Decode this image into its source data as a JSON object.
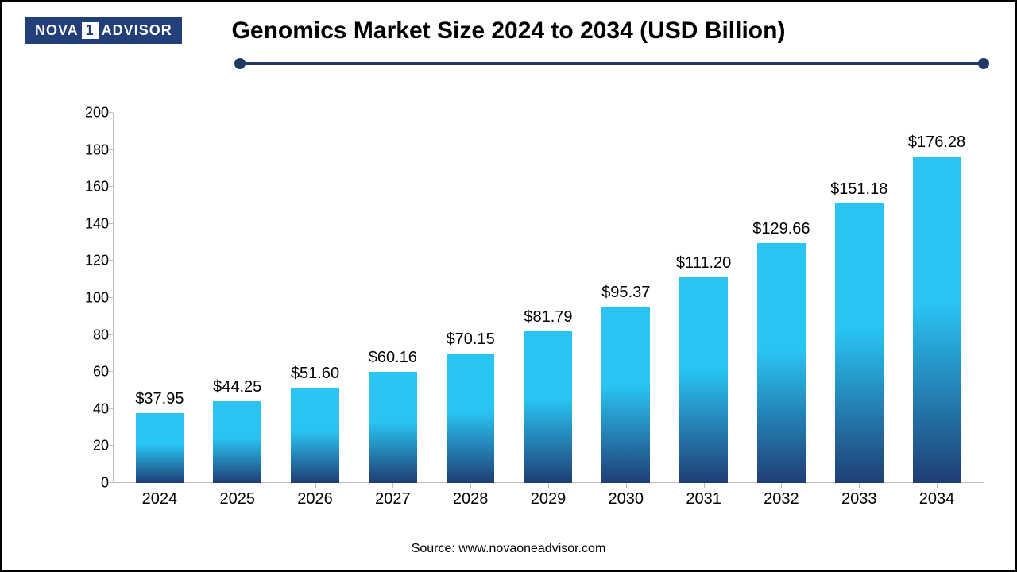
{
  "logo": {
    "part1": "NOVA",
    "boxed": "1",
    "part2": "ADVISOR",
    "bg_color": "#233f78",
    "text_color": "#ffffff"
  },
  "title": {
    "text": "Genomics Market Size 2024 to 2034 (USD Billion)",
    "fontsize": 30,
    "color": "#000000"
  },
  "divider": {
    "color": "#1f3864",
    "thickness": 4
  },
  "chart": {
    "type": "bar",
    "categories": [
      "2024",
      "2025",
      "2026",
      "2027",
      "2028",
      "2029",
      "2030",
      "2031",
      "2032",
      "2033",
      "2034"
    ],
    "values": [
      37.95,
      44.25,
      51.6,
      60.16,
      70.15,
      81.79,
      95.37,
      111.2,
      129.66,
      151.18,
      176.28
    ],
    "value_labels": [
      "$37.95",
      "$44.25",
      "$51.60",
      "$60.16",
      "$70.15",
      "$81.79",
      "$95.37",
      "$111.20",
      "$129.66",
      "$151.18",
      "$176.28"
    ],
    "ylim": [
      0,
      200
    ],
    "ytick_step": 20,
    "yticks": [
      0,
      20,
      40,
      60,
      80,
      100,
      120,
      140,
      160,
      180,
      200
    ],
    "bar_gradient_top": "#29c4f2",
    "bar_gradient_bottom": "#1f3e75",
    "bar_width_ratio": 0.62,
    "axis_color": "#bfbfbf",
    "label_fontsize": 20,
    "ytick_fontsize": 18,
    "xtick_fontsize": 20,
    "background_color": "#ffffff",
    "text_color": "#000000"
  },
  "source": {
    "text": "Source: www.novaoneadvisor.com",
    "fontsize": 16,
    "color": "#000000"
  }
}
